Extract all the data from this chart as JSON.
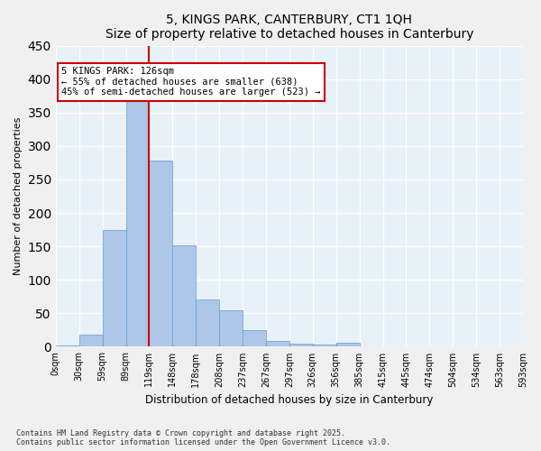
{
  "title": "5, KINGS PARK, CANTERBURY, CT1 1QH",
  "subtitle": "Size of property relative to detached houses in Canterbury",
  "xlabel": "Distribution of detached houses by size in Canterbury",
  "ylabel": "Number of detached properties",
  "bar_values": [
    2,
    18,
    175,
    370,
    278,
    152,
    70,
    54,
    25,
    9,
    5,
    3,
    6,
    0,
    1,
    0,
    0,
    0,
    1,
    0
  ],
  "bar_labels": [
    "0sqm",
    "30sqm",
    "59sqm",
    "89sqm",
    "119sqm",
    "148sqm",
    "178sqm",
    "208sqm",
    "237sqm",
    "267sqm",
    "297sqm",
    "326sqm",
    "356sqm",
    "385sqm",
    "415sqm",
    "445sqm",
    "474sqm",
    "504sqm",
    "534sqm",
    "563sqm",
    "593sqm"
  ],
  "bar_color": "#aec6e8",
  "bar_edge_color": "#5a9fd4",
  "vline_x": 4,
  "vline_color": "#cc0000",
  "annotation_title": "5 KINGS PARK: 126sqm",
  "annotation_line1": "← 55% of detached houses are smaller (638)",
  "annotation_line2": "45% of semi-detached houses are larger (523) →",
  "annotation_box_color": "#cc0000",
  "ylim": [
    0,
    450
  ],
  "yticks": [
    0,
    50,
    100,
    150,
    200,
    250,
    300,
    350,
    400,
    450
  ],
  "bg_color": "#e8f0f8",
  "grid_color": "#ffffff",
  "footer": "Contains HM Land Registry data © Crown copyright and database right 2025.\nContains public sector information licensed under the Open Government Licence v3.0.",
  "n_bars": 20
}
